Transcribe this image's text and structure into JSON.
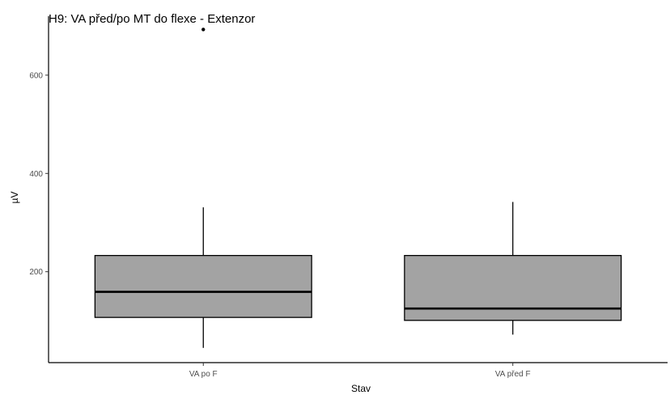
{
  "chart_data": {
    "type": "boxplot",
    "title": "H9: VA před/po MT do flexe - Extenzor",
    "xlabel": "Stav",
    "ylabel": "µV",
    "categories": [
      "VA po F",
      "VA před F"
    ],
    "y_ticks": [
      200,
      400,
      600
    ],
    "ylim": [
      15,
      720
    ],
    "grid": false,
    "legend": "none",
    "box_fill": "#a3a3a3",
    "line_color": "#000000",
    "boxes": [
      {
        "category": "VA po F",
        "whisker_low": 45,
        "q1": 107,
        "median": 159,
        "q3": 233,
        "whisker_high": 331,
        "outliers": [
          693
        ]
      },
      {
        "category": "VA před F",
        "whisker_low": 72,
        "q1": 101,
        "median": 125,
        "q3": 233,
        "whisker_high": 342,
        "outliers": []
      }
    ]
  }
}
